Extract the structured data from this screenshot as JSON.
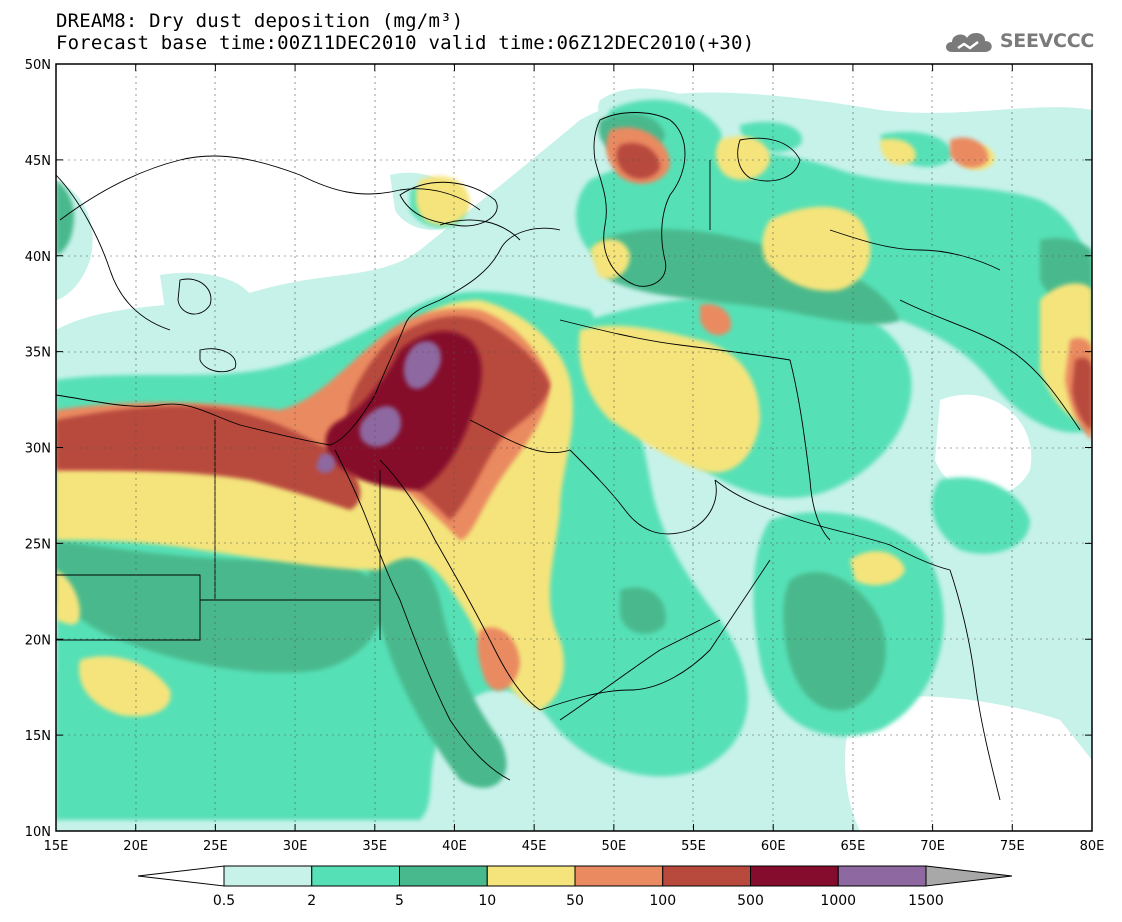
{
  "title_line1": "DREAM8: Dry dust deposition (mg/m³)",
  "title_line2": "Forecast base time:00Z11DEC2010 valid time:06Z12DEC2010(+30)",
  "logo": {
    "text": "SEEVCCC",
    "icon": "cloud-logo-icon",
    "color": "#7a7a7a"
  },
  "map": {
    "lon_range": [
      15,
      80
    ],
    "lat_range": [
      10,
      50
    ],
    "lon_ticks": [
      {
        "v": 15,
        "label": "15E"
      },
      {
        "v": 20,
        "label": "20E"
      },
      {
        "v": 25,
        "label": "25E"
      },
      {
        "v": 30,
        "label": "30E"
      },
      {
        "v": 35,
        "label": "35E"
      },
      {
        "v": 40,
        "label": "40E"
      },
      {
        "v": 45,
        "label": "45E"
      },
      {
        "v": 50,
        "label": "50E"
      },
      {
        "v": 55,
        "label": "55E"
      },
      {
        "v": 60,
        "label": "60E"
      },
      {
        "v": 65,
        "label": "65E"
      },
      {
        "v": 70,
        "label": "70E"
      },
      {
        "v": 75,
        "label": "75E"
      },
      {
        "v": 80,
        "label": "80E"
      }
    ],
    "lat_ticks": [
      {
        "v": 10,
        "label": "10N"
      },
      {
        "v": 15,
        "label": "15N"
      },
      {
        "v": 20,
        "label": "20N"
      },
      {
        "v": 25,
        "label": "25N"
      },
      {
        "v": 30,
        "label": "30N"
      },
      {
        "v": 35,
        "label": "35N"
      },
      {
        "v": 40,
        "label": "40N"
      },
      {
        "v": 45,
        "label": "45N"
      },
      {
        "v": 50,
        "label": "50N"
      }
    ],
    "gridlines": "dotted"
  },
  "colorbar": {
    "colors": [
      "#ffffff",
      "#c7f2ea",
      "#56e0b6",
      "#48b98d",
      "#f5e47c",
      "#ea8a60",
      "#b84a3d",
      "#850c2c",
      "#8e68a0",
      "#a8a8a8"
    ],
    "labels": [
      "0.5",
      "2",
      "5",
      "10",
      "50",
      "100",
      "500",
      "1000",
      "1500"
    ]
  }
}
